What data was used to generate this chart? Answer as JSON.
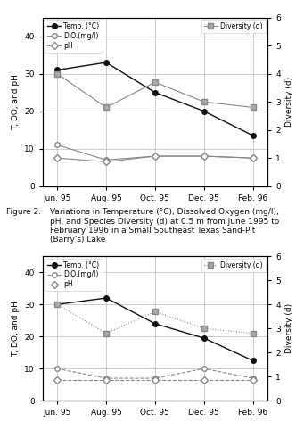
{
  "x_labels": [
    "Jun. 95",
    "Aug. 95",
    "Oct. 95",
    "Dec. 95",
    "Feb. 96"
  ],
  "x_positions": [
    0,
    1,
    2,
    3,
    4
  ],
  "top_chart": {
    "temp": [
      31,
      33,
      25,
      20,
      13.5
    ],
    "do": [
      11,
      7,
      8,
      8,
      7.5
    ],
    "ph": [
      7.5,
      6.5,
      8,
      8,
      7.5
    ],
    "diversity": [
      4,
      2.8,
      3.7,
      3.0,
      2.8
    ],
    "temp_ls": "-",
    "do_ls": "-",
    "ph_ls": "-",
    "div_ls": "-"
  },
  "bottom_chart": {
    "temp": [
      30,
      32,
      24,
      19.5,
      12.5
    ],
    "do": [
      10,
      7,
      7,
      10,
      7
    ],
    "ph": [
      6.5,
      6.5,
      6.5,
      6.5,
      6.5
    ],
    "diversity": [
      4,
      2.8,
      3.7,
      3.0,
      2.8
    ],
    "temp_ls": "-",
    "do_ls": "--",
    "ph_ls": "--",
    "div_ls": ":"
  },
  "temp_color": "#111111",
  "do_color": "#888888",
  "ph_color": "#888888",
  "div_color": "#888888",
  "ylabel_left": "T, DO, and pH",
  "ylabel_right": "Diversity (d)",
  "ylim_left": [
    0,
    45
  ],
  "ylim_right": [
    0,
    6
  ],
  "yticks_left": [
    0,
    10,
    20,
    30,
    40
  ],
  "yticks_right": [
    0,
    1,
    2,
    3,
    4,
    5,
    6
  ],
  "cap2_label": "Figure 2.",
  "cap2_text": "Variations in Temperature (°C), Dissolved Oxygen (mg/l),\npH, and Species Diversity (d) at 0.5 m from June 1995 to\nFebruary 1996 in a Small Southeast Texas Sand-Pit\n(Barry's) Lake",
  "background_color": "#ffffff",
  "grid_color": "#bbbbbb"
}
